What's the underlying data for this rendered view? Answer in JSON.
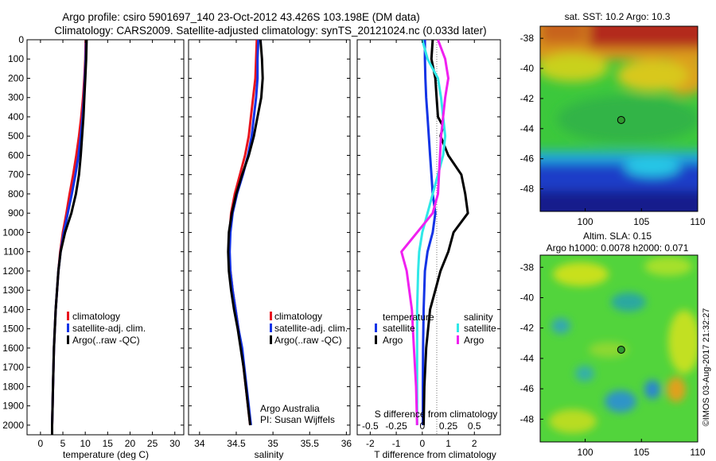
{
  "title_line1": "Argo profile: csiro 5901697_140 23-Oct-2012 43.426S 103.198E (DM data)",
  "title_line2": "Climatology: CARS2009. Satellite-adjusted climatology: synTS_20121024.nc (0.033d later)",
  "credit": "Argo Australia",
  "pi": "PI: Susan Wijffels",
  "imos_stamp": "©IMOS 03-Aug-2017 21:32:27",
  "colors": {
    "climatology": "#e8141e",
    "satellite": "#1434e6",
    "argo": "#000000",
    "sal_satellite": "#30e8e8",
    "sal_argo": "#f020f0"
  },
  "map_sst_title": "sat. SST: 10.2  Argo: 10.3",
  "map_sla_title1": "Altim. SLA: 0.15",
  "map_sla_title2": "Argo h1000: 0.0078 h2000: 0.071",
  "chart_data": [
    {
      "type": "line",
      "xlabel": "temperature (deg C)",
      "ylabel": "",
      "xticks": [
        "0",
        "5",
        "10",
        "15",
        "20",
        "25",
        "30"
      ],
      "xlim": [
        -3,
        32
      ],
      "ylim": [
        0,
        2050
      ],
      "yticks": [
        "0",
        "100",
        "200",
        "300",
        "400",
        "500",
        "600",
        "700",
        "800",
        "900",
        "1000",
        "1100",
        "1200",
        "1300",
        "1400",
        "1500",
        "1600",
        "1700",
        "1800",
        "1900",
        "2000"
      ],
      "legend": [
        "climatology",
        "satellite-adj. clim.",
        "Argo(..raw -QC)"
      ],
      "series": [
        {
          "name": "climatology",
          "color": "climatology",
          "depth": [
            0,
            100,
            200,
            300,
            400,
            500,
            600,
            700,
            800,
            900,
            1000,
            1100,
            1200,
            1300,
            1400,
            1500,
            1600,
            1700,
            1800,
            1900,
            2000,
            2050
          ],
          "values": [
            10.1,
            10.0,
            9.8,
            9.5,
            9.1,
            8.6,
            8.0,
            7.3,
            6.5,
            5.8,
            5.0,
            4.4,
            4.0,
            3.7,
            3.4,
            3.2,
            3.0,
            2.9,
            2.8,
            2.7,
            2.6,
            2.6
          ]
        },
        {
          "name": "satellite-adj. clim.",
          "color": "satellite",
          "depth": [
            0,
            100,
            200,
            300,
            400,
            500,
            600,
            700,
            800,
            900,
            1000,
            1100,
            1200,
            1300,
            1400,
            1500,
            1600,
            1700,
            1800,
            1900,
            2000,
            2050
          ],
          "values": [
            10.2,
            10.1,
            9.9,
            9.7,
            9.4,
            9.0,
            8.5,
            7.8,
            7.0,
            6.1,
            5.2,
            4.5,
            4.0,
            3.7,
            3.4,
            3.2,
            3.0,
            2.9,
            2.8,
            2.7,
            2.6,
            2.6
          ]
        },
        {
          "name": "Argo(..raw -QC)",
          "color": "argo",
          "depth": [
            0,
            100,
            200,
            300,
            400,
            500,
            600,
            700,
            800,
            900,
            1000,
            1100,
            1200,
            1300,
            1400,
            1500,
            1600,
            1700,
            1800,
            1900,
            2000,
            2050
          ],
          "values": [
            10.3,
            10.2,
            10.0,
            9.8,
            9.6,
            9.3,
            9.0,
            8.6,
            7.9,
            6.9,
            5.5,
            4.5,
            4.0,
            3.7,
            3.4,
            3.2,
            3.0,
            2.9,
            2.8,
            2.7,
            2.6,
            2.6
          ]
        }
      ]
    },
    {
      "type": "line",
      "xlabel": "salinity",
      "ylabel": "",
      "xticks": [
        "34",
        "34.5",
        "35",
        "35.5",
        "36"
      ],
      "xlim": [
        33.85,
        36.05
      ],
      "ylim": [
        0,
        2050
      ],
      "legend": [
        "climatology",
        "satellite-adj. clim.",
        "Argo(..raw -QC)"
      ],
      "series": [
        {
          "name": "climatology",
          "color": "climatology",
          "depth": [
            0,
            100,
            200,
            300,
            400,
            500,
            600,
            700,
            800,
            900,
            1000,
            1100,
            1200,
            1300,
            1400,
            1500,
            1600,
            1700,
            1800,
            1900,
            2000
          ],
          "values": [
            34.78,
            34.77,
            34.76,
            34.73,
            34.7,
            34.67,
            34.62,
            34.55,
            34.48,
            34.43,
            34.41,
            34.4,
            34.42,
            34.45,
            34.49,
            34.53,
            34.57,
            34.6,
            34.63,
            34.66,
            34.69
          ]
        },
        {
          "name": "satellite-adj. clim.",
          "color": "satellite",
          "depth": [
            0,
            100,
            200,
            300,
            400,
            500,
            600,
            700,
            800,
            900,
            1000,
            1100,
            1200,
            1300,
            1400,
            1500,
            1600,
            1700,
            1800,
            1900,
            2000
          ],
          "values": [
            34.8,
            34.79,
            34.79,
            34.77,
            34.74,
            34.71,
            34.66,
            34.59,
            34.51,
            34.45,
            34.42,
            34.41,
            34.42,
            34.45,
            34.49,
            34.53,
            34.58,
            34.61,
            34.64,
            34.67,
            34.7
          ]
        },
        {
          "name": "Argo(..raw -QC)",
          "color": "argo",
          "depth": [
            0,
            100,
            200,
            300,
            400,
            500,
            600,
            700,
            800,
            900,
            1000,
            1100,
            1200,
            1300,
            1400,
            1500,
            1600,
            1700,
            1800,
            1900,
            2000
          ],
          "values": [
            34.83,
            34.85,
            34.86,
            34.84,
            34.79,
            34.74,
            34.67,
            34.58,
            34.5,
            34.44,
            34.4,
            34.39,
            34.4,
            34.43,
            34.47,
            34.52,
            34.56,
            34.6,
            34.63,
            34.66,
            34.69
          ]
        }
      ]
    },
    {
      "type": "line",
      "xlabel": "T difference from climatology",
      "xlabel_top": "S difference from climatology",
      "xticks": [
        "-2",
        "-1",
        "0",
        "1",
        "2"
      ],
      "xticks_top": [
        "-0.5",
        "-0.25",
        "0",
        "0.25",
        "0.5"
      ],
      "xlim": [
        -2.5,
        3.0
      ],
      "ylim": [
        0,
        2050
      ],
      "legend_titles": [
        "temperature",
        "salinity"
      ],
      "legend": [
        "satellite",
        "Argo",
        "satellite",
        "Argo"
      ],
      "series": [
        {
          "name": "satellite",
          "group": "temperature",
          "color": "satellite",
          "depth": [
            0,
            100,
            200,
            300,
            400,
            500,
            600,
            700,
            800,
            900,
            1000,
            1100,
            1200,
            1400,
            1600,
            1800,
            2000
          ],
          "values": [
            0.1,
            0.1,
            0.12,
            0.15,
            0.2,
            0.25,
            0.3,
            0.35,
            0.4,
            0.5,
            0.4,
            0.2,
            0.1,
            0.05,
            0.03,
            0.02,
            0.02
          ]
        },
        {
          "name": "Argo",
          "group": "temperature",
          "color": "argo",
          "depth": [
            0,
            100,
            200,
            300,
            400,
            450,
            500,
            600,
            700,
            800,
            900,
            1000,
            1100,
            1200,
            1300,
            1400,
            1600,
            1800,
            2000
          ],
          "values": [
            0.4,
            0.35,
            0.5,
            0.55,
            0.6,
            0.8,
            0.7,
            1.0,
            1.5,
            1.65,
            1.75,
            1.2,
            1.0,
            0.7,
            0.5,
            0.3,
            0.15,
            0.08,
            0.05
          ]
        },
        {
          "name": "satellite",
          "group": "salinity",
          "color": "sal_satellite",
          "depth": [
            0,
            100,
            200,
            300,
            400,
            500,
            600,
            700,
            800,
            900,
            1000,
            1100,
            1200,
            1400,
            1600,
            1800,
            2000
          ],
          "values": [
            0.0,
            0.05,
            0.15,
            0.18,
            0.2,
            0.22,
            0.2,
            0.15,
            0.1,
            0.05,
            0.0,
            -0.03,
            -0.04,
            -0.05,
            -0.05,
            -0.05,
            -0.05
          ]
        },
        {
          "name": "Argo",
          "group": "salinity",
          "color": "sal_argo",
          "depth": [
            0,
            100,
            200,
            300,
            400,
            500,
            600,
            700,
            800,
            900,
            1000,
            1100,
            1200,
            1400,
            1600,
            1800,
            2000
          ],
          "values": [
            0.15,
            0.22,
            0.25,
            0.22,
            0.2,
            0.18,
            0.17,
            0.16,
            0.15,
            0.1,
            -0.05,
            -0.2,
            -0.15,
            -0.1,
            -0.08,
            -0.06,
            -0.05
          ]
        }
      ]
    },
    {
      "type": "heatmap",
      "title": "sat. SST: 10.2  Argo: 10.3",
      "xticks": [
        "100",
        "105",
        "110"
      ],
      "yticks": [
        "-38",
        "-40",
        "-42",
        "-44",
        "-46",
        "-48"
      ],
      "xlim": [
        96,
        110
      ],
      "ylim": [
        -49.5,
        -37.2
      ],
      "marker": {
        "lon": 103.198,
        "lat": -43.426
      }
    },
    {
      "type": "heatmap",
      "title": "Altim. SLA: 0.15 / Argo h1000: 0.0078 h2000: 0.071",
      "xticks": [
        "100",
        "105",
        "110"
      ],
      "yticks": [
        "-38",
        "-40",
        "-42",
        "-44",
        "-46",
        "-48"
      ],
      "xlim": [
        96,
        110
      ],
      "ylim": [
        -49.5,
        -37.2
      ],
      "marker": {
        "lon": 103.198,
        "lat": -43.426
      }
    }
  ]
}
